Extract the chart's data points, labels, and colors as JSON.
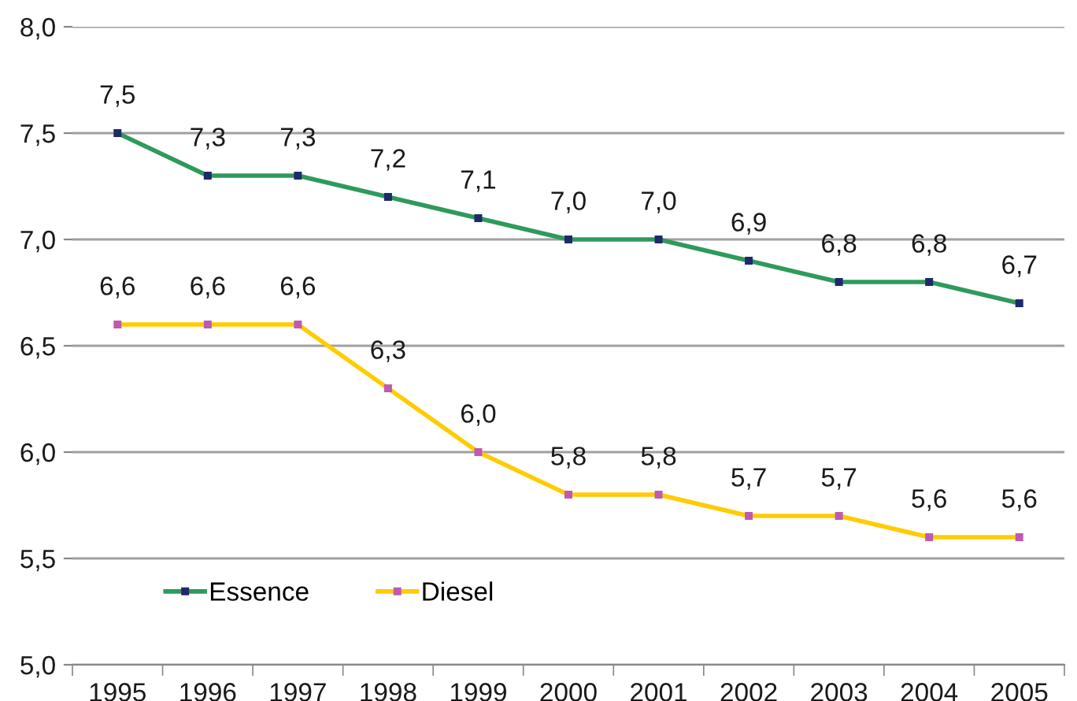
{
  "chart_data": {
    "type": "line",
    "categories": [
      "1995",
      "1996",
      "1997",
      "1998",
      "1999",
      "2000",
      "2001",
      "2002",
      "2003",
      "2004",
      "2005"
    ],
    "series": [
      {
        "name": "Essence",
        "color": "#2e9a5c",
        "colors": [
          "#1f2a6b",
          "#1f2a6b",
          "#1f2a6b",
          "#1f2a6b",
          "#1f2a6b",
          "#1f2a6b",
          "#1f2a6b",
          "#1f2a6b",
          "#1f2a6b",
          "#1f2a6b",
          "#1f2a6b"
        ],
        "values": [
          7.5,
          7.3,
          7.3,
          7.2,
          7.1,
          7.0,
          7.0,
          6.9,
          6.8,
          6.8,
          6.7
        ],
        "value_labels": [
          "7,5",
          "7,3",
          "7,3",
          "7,2",
          "7,1",
          "7,0",
          "7,0",
          "6,9",
          "6,8",
          "6,8",
          "6,7"
        ]
      },
      {
        "name": "Diesel",
        "color": "#ffcc00",
        "colors": [
          "#c05ab0",
          "#c05ab0",
          "#c05ab0",
          "#c05ab0",
          "#c05ab0",
          "#c05ab0",
          "#c05ab0",
          "#c05ab0",
          "#c05ab0",
          "#c05ab0",
          "#c05ab0"
        ],
        "values": [
          6.6,
          6.6,
          6.6,
          6.3,
          6.0,
          5.8,
          5.8,
          5.7,
          5.7,
          5.6,
          5.6
        ],
        "value_labels": [
          "6,6",
          "6,6",
          "6,6",
          "6,3",
          "6,0",
          "5,8",
          "5,8",
          "5,7",
          "5,7",
          "5,6",
          "5,6"
        ]
      }
    ],
    "ylim": [
      5.0,
      8.0
    ],
    "yticks": [
      {
        "value": 5.0,
        "label": "5,0"
      },
      {
        "value": 5.5,
        "label": "5,5"
      },
      {
        "value": 6.0,
        "label": "6,0"
      },
      {
        "value": 6.5,
        "label": "6,5"
      },
      {
        "value": 7.0,
        "label": "7,0"
      },
      {
        "value": 7.5,
        "label": "7,5"
      },
      {
        "value": 8.0,
        "label": "8,0"
      }
    ],
    "grid": "y",
    "legend": "bottom left",
    "marker": "square",
    "line_style": "solid"
  }
}
